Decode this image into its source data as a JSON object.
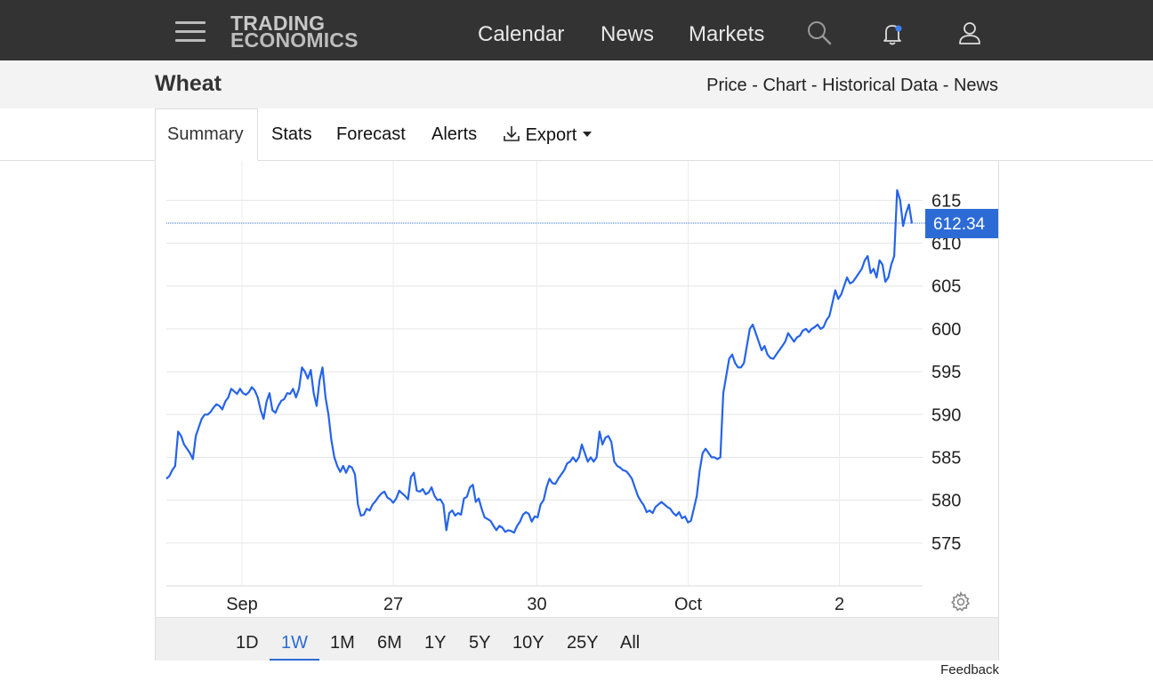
{
  "nav": {
    "logo_line1": "TRADING",
    "logo_line2": "ECONOMICS",
    "links": [
      "Calendar",
      "News",
      "Markets"
    ]
  },
  "page": {
    "title": "Wheat",
    "sublinks": [
      "Price",
      "Chart",
      "Historical Data",
      "News"
    ],
    "sublink_sep": " - "
  },
  "tabs": [
    "Summary",
    "Stats",
    "Forecast",
    "Alerts",
    "Export"
  ],
  "ranges": [
    "1D",
    "1W",
    "1M",
    "6M",
    "1Y",
    "5Y",
    "10Y",
    "25Y",
    "All"
  ],
  "active_range": "1W",
  "feedback": "Feedback",
  "colors": {
    "accent": "#2c6bd6",
    "line": "#2563eb",
    "nav_bg": "#333333"
  },
  "chart_data": {
    "type": "line",
    "current_value": 612.34,
    "current_label": "612.34",
    "y_ticks": [
      575,
      580,
      585,
      590,
      595,
      600,
      605,
      610,
      615
    ],
    "ylim": [
      570,
      619.6
    ],
    "x_tick_labels": [
      "Sep",
      "27",
      "30",
      "Oct",
      "2"
    ],
    "x_tick_positions": [
      0.1,
      0.3,
      0.49,
      0.69,
      0.89
    ],
    "series": [
      {
        "values": [
          582.5,
          582.8,
          583.5,
          584.0,
          588.0,
          587.5,
          586.5,
          586.0,
          585.5,
          584.8,
          587.5,
          588.5,
          589.5,
          590.0,
          590.0,
          590.3,
          590.8,
          591.2,
          591.0,
          590.6,
          591.5,
          592.0,
          593.0,
          592.7,
          592.4,
          593.0,
          592.5,
          592.3,
          592.6,
          593.2,
          592.8,
          592.0,
          590.5,
          589.5,
          591.5,
          592.5,
          590.5,
          590.2,
          591.0,
          591.6,
          591.8,
          592.5,
          592.4,
          593.0,
          592.0,
          593.0,
          595.5,
          595.0,
          594.2,
          595.2,
          592.5,
          591.0,
          594.0,
          595.5,
          592.0,
          590.0,
          587.0,
          585.0,
          584.0,
          583.3,
          584.0,
          583.2,
          584.0,
          583.8,
          583.0,
          579.5,
          578.2,
          578.3,
          579.0,
          578.8,
          579.5,
          579.9,
          580.4,
          580.8,
          581.0,
          580.3,
          580.1,
          579.7,
          580.2,
          581.1,
          580.8,
          580.5,
          580.1,
          582.7,
          583.2,
          581.1,
          581.0,
          581.3,
          580.7,
          580.9,
          581.5,
          580.5,
          580.0,
          580.1,
          579.5,
          576.5,
          578.5,
          578.8,
          578.2,
          578.5,
          578.3,
          580.2,
          580.4,
          581.5,
          581.8,
          579.8,
          580.2,
          579.0,
          578.0,
          577.8,
          577.6,
          577.0,
          576.5,
          577.0,
          576.8,
          576.3,
          576.5,
          576.4,
          576.2,
          577.0,
          577.5,
          578.3,
          578.6,
          578.4,
          577.5,
          578.1,
          578.0,
          579.5,
          580.0,
          581.5,
          582.5,
          582.0,
          581.9,
          582.5,
          583.0,
          583.5,
          584.3,
          584.5,
          585.0,
          584.5,
          585.0,
          586.5,
          585.5,
          584.5,
          585.0,
          584.5,
          585.0,
          588.0,
          586.5,
          587.3,
          587.5,
          586.8,
          584.5,
          584.0,
          583.8,
          583.5,
          583.4,
          583.0,
          582.5,
          581.5,
          580.5,
          579.9,
          579.4,
          578.6,
          578.8,
          578.5,
          579.2,
          579.5,
          579.8,
          579.5,
          579.2,
          579.0,
          578.5,
          578.2,
          578.6,
          577.9,
          578.1,
          577.4,
          577.6,
          579.0,
          580.5,
          583.5,
          585.5,
          586.0,
          585.5,
          585.0,
          585.0,
          584.8,
          585.0,
          592.5,
          594.5,
          596.5,
          597.0,
          596.0,
          595.5,
          595.5,
          596.0,
          598.0,
          600.0,
          600.5,
          599.5,
          598.5,
          597.5,
          598.0,
          597.0,
          596.6,
          596.5,
          597.0,
          597.5,
          598.0,
          598.5,
          599.5,
          599.0,
          598.5,
          599.0,
          599.2,
          599.8,
          600.0,
          599.6,
          600.0,
          600.2,
          600.5,
          600.0,
          600.2,
          601.0,
          601.5,
          603.0,
          604.5,
          603.5,
          604.0,
          605.0,
          606.0,
          605.3,
          605.5,
          606.0,
          606.5,
          607.0,
          608.0,
          608.5,
          606.5,
          607.0,
          606.0,
          608.0,
          607.5,
          605.5,
          606.0,
          607.5,
          608.5,
          616.2,
          615.0,
          612.0,
          613.5,
          614.5,
          612.3
        ]
      }
    ]
  }
}
